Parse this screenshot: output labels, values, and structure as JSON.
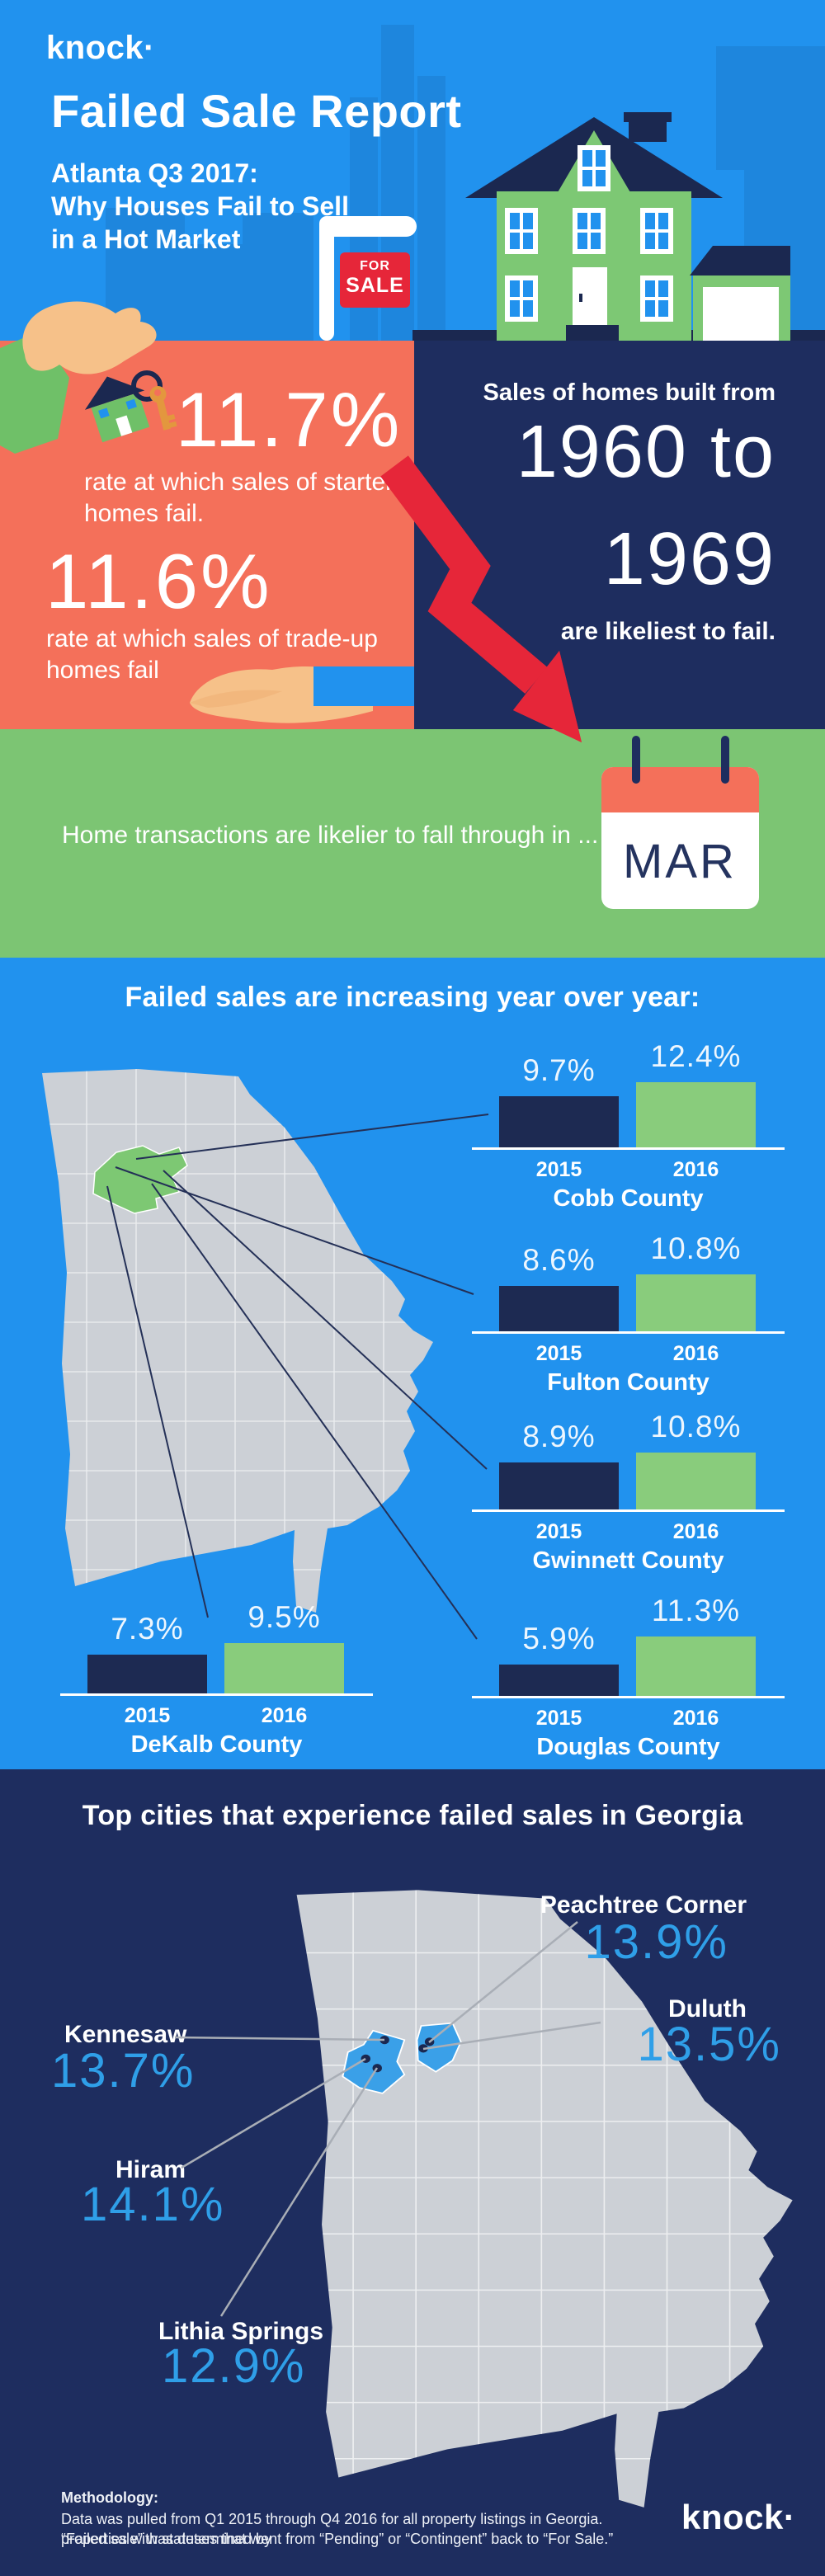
{
  "brand": {
    "logo": "knock·"
  },
  "header": {
    "title": "Failed Sale Report",
    "subtitle_line1": "Atlanta Q3 2017:",
    "subtitle_line2": "Why Houses Fail to Sell",
    "subtitle_line3": "in a Hot Market",
    "sign_line1": "FOR",
    "sign_line2": "SALE"
  },
  "rates": {
    "starter_pct": "11.7%",
    "starter_desc": "rate at which sales of starter homes fail.",
    "tradeup_pct": "11.6%",
    "tradeup_desc": "rate at which sales of trade-up homes fail"
  },
  "built": {
    "intro": "Sales of homes built from",
    "range_start": "1960 to",
    "range_end": "1969",
    "outro": "are likeliest to fail."
  },
  "month": {
    "text": "Home transactions are likelier to fall through in ...",
    "calendar_label": "MAR"
  },
  "county_section": {
    "title": "Failed sales are increasing year over year:"
  },
  "city_section": {
    "title": "Top cities that experience failed sales in Georgia"
  },
  "footer": {
    "heading": "Methodology:",
    "line1": "Data was pulled from Q1 2015 through Q4 2016 for all property listings in Georgia. “Failed sale” was determined by",
    "line2": "properties with statuses that went from “Pending” or “Contingent” back to “For Sale.”",
    "logo": "knock·"
  },
  "chart_data": [
    {
      "type": "bar",
      "title": "Failed sales are increasing year over year:",
      "categories": [
        "2015",
        "2016"
      ],
      "unit": "%",
      "ylim": [
        0,
        14
      ],
      "legend_position": "none",
      "grid": false,
      "series": [
        {
          "name": "Cobb County",
          "values": [
            9.7,
            12.4
          ],
          "labels": [
            "9.7%",
            "12.4%"
          ]
        },
        {
          "name": "Fulton County",
          "values": [
            8.6,
            10.8
          ],
          "labels": [
            "8.6%",
            "10.8%"
          ]
        },
        {
          "name": "Gwinnett County",
          "values": [
            8.9,
            10.8
          ],
          "labels": [
            "8.9%",
            "10.8%"
          ]
        },
        {
          "name": "DeKalb County",
          "values": [
            7.3,
            9.5
          ],
          "labels": [
            "7.3%",
            "9.5%"
          ]
        },
        {
          "name": "Douglas County",
          "values": [
            5.9,
            11.3
          ],
          "labels": [
            "5.9%",
            "11.3%"
          ]
        }
      ],
      "colors": {
        "2015": "#1d2a52",
        "2016": "#89cc7c"
      }
    },
    {
      "type": "map-callouts",
      "title": "Top cities that experience failed sales in Georgia",
      "points": [
        {
          "city": "Peachtree Corner",
          "label": "13.9%",
          "value": 13.9
        },
        {
          "city": "Duluth",
          "label": "13.5%",
          "value": 13.5
        },
        {
          "city": "Kennesaw",
          "label": "13.7%",
          "value": 13.7
        },
        {
          "city": "Hiram",
          "label": "14.1%",
          "value": 14.1
        },
        {
          "city": "Lithia Springs",
          "label": "12.9%",
          "value": 12.9
        }
      ]
    }
  ],
  "colors": {
    "blue": "#2192ee",
    "navy": "#1e2d5f",
    "orange": "#f4705a",
    "green": "#7cc573",
    "bar_2015": "#1d2a52",
    "bar_2016": "#89cc7c",
    "red": "#e62639",
    "city_pct_blue": "#2f9fe8",
    "map_gray": "#ccd0d6"
  }
}
